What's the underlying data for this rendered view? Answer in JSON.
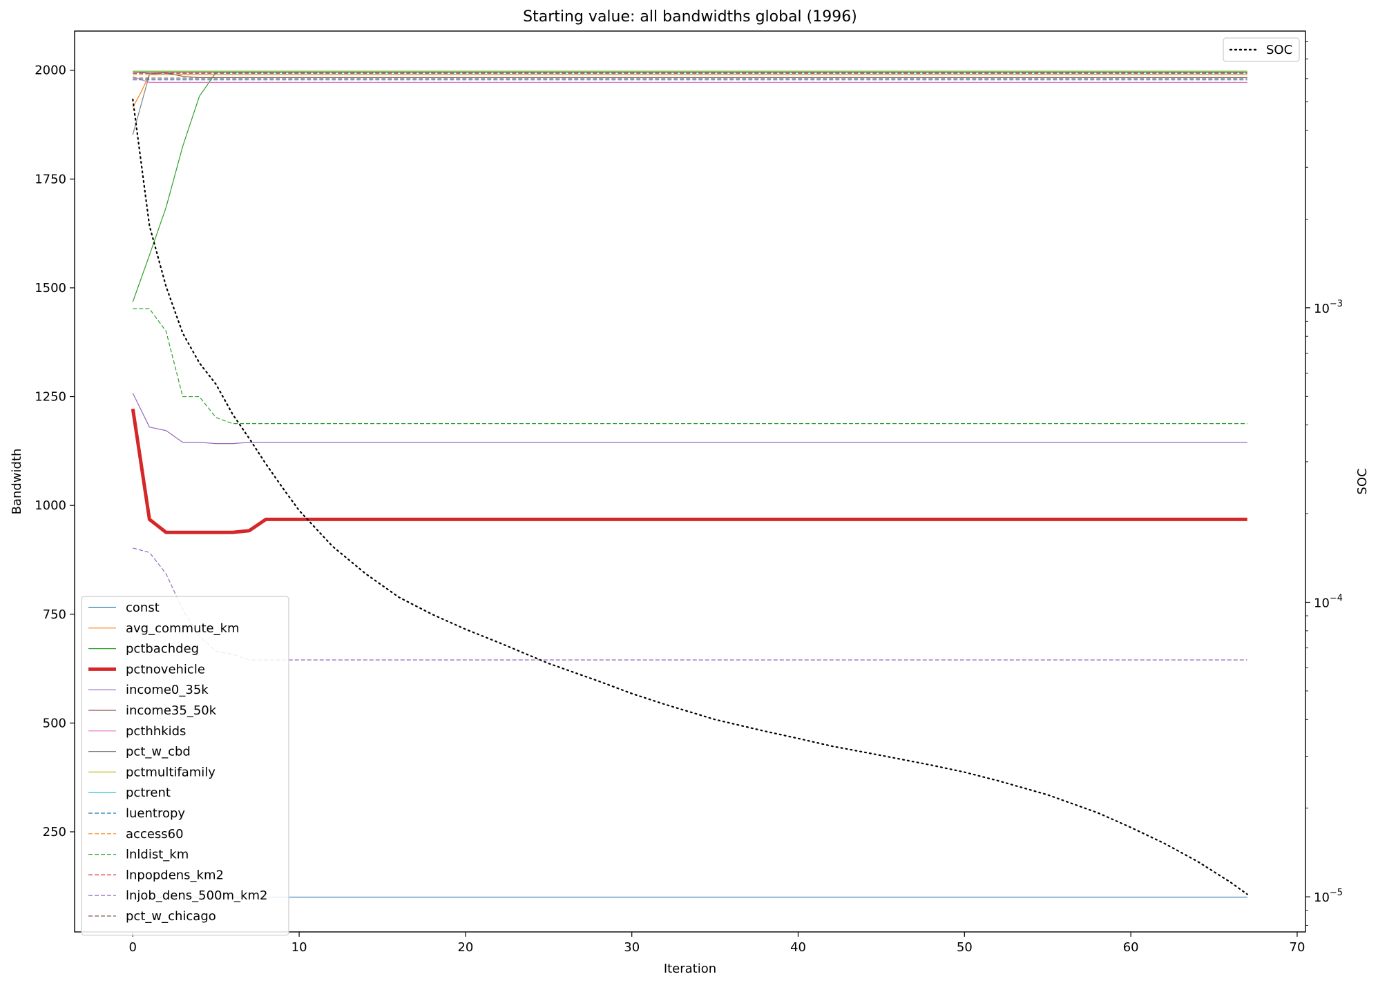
{
  "chart_data": {
    "type": "line",
    "title": "Starting value: all bandwidths global (1996)",
    "xlabel": "Iteration",
    "ylabel": "Bandwidth",
    "y2label": "SOC",
    "xlim": [
      -3.5,
      70.5
    ],
    "ylim": [
      20,
      2090
    ],
    "y2lim": [
      7.6e-06,
      0.0087
    ],
    "y2scale": "log",
    "x_ticks": [
      0,
      10,
      20,
      30,
      40,
      50,
      60,
      70
    ],
    "y_ticks": [
      250,
      500,
      750,
      1000,
      1250,
      1500,
      1750,
      2000
    ],
    "y2_ticks": [
      {
        "value": 1e-05,
        "label": "10",
        "exp": "−5"
      },
      {
        "value": 0.0001,
        "label": "10",
        "exp": "−4"
      },
      {
        "value": 0.001,
        "label": "10",
        "exp": "−3"
      }
    ],
    "legend_left_position": "lower-left",
    "legend_right_position": "upper-right",
    "grid": false,
    "series": [
      {
        "name": "const",
        "color": "#1f77b4",
        "dash": "solid",
        "width": 1.2,
        "points": [
          [
            0,
            100
          ],
          [
            67,
            100
          ]
        ]
      },
      {
        "name": "avg_commute_km",
        "color": "#ff7f0e",
        "dash": "solid",
        "width": 1.2,
        "points": [
          [
            0,
            1915
          ],
          [
            0.5,
            1950
          ],
          [
            1,
            1990
          ],
          [
            2,
            1995
          ],
          [
            67,
            1995
          ]
        ]
      },
      {
        "name": "pctbachdeg",
        "color": "#2ca02c",
        "dash": "solid",
        "width": 1.2,
        "points": [
          [
            0,
            1468
          ],
          [
            1,
            1575
          ],
          [
            2,
            1685
          ],
          [
            3,
            1825
          ],
          [
            4,
            1940
          ],
          [
            5,
            1995
          ],
          [
            67,
            1995
          ]
        ]
      },
      {
        "name": "pctnovehicle",
        "color": "#d62728",
        "dash": "solid",
        "width": 5,
        "points": [
          [
            0,
            1222
          ],
          [
            1,
            968
          ],
          [
            2,
            938
          ],
          [
            3,
            938
          ],
          [
            4,
            938
          ],
          [
            5,
            938
          ],
          [
            6,
            938
          ],
          [
            7,
            942
          ],
          [
            8,
            968
          ],
          [
            67,
            968
          ]
        ]
      },
      {
        "name": "income0_35k",
        "color": "#9467bd",
        "dash": "solid",
        "width": 1.2,
        "points": [
          [
            0,
            1258
          ],
          [
            1,
            1180
          ],
          [
            2,
            1172
          ],
          [
            3,
            1145
          ],
          [
            4,
            1145
          ],
          [
            5,
            1142
          ],
          [
            6,
            1142
          ],
          [
            7,
            1145
          ],
          [
            67,
            1145
          ]
        ]
      },
      {
        "name": "income35_50k",
        "color": "#8c564b",
        "dash": "solid",
        "width": 1.2,
        "points": [
          [
            0,
            1996
          ],
          [
            1,
            1993
          ],
          [
            2,
            1994
          ],
          [
            3,
            1986
          ],
          [
            4,
            1983
          ],
          [
            67,
            1983
          ]
        ]
      },
      {
        "name": "pcthhkids",
        "color": "#e377c2",
        "dash": "solid",
        "width": 1.2,
        "points": [
          [
            0,
            1985
          ],
          [
            1,
            1972
          ],
          [
            67,
            1972
          ]
        ]
      },
      {
        "name": "pct_w_cbd",
        "color": "#7f7f7f",
        "dash": "solid",
        "width": 1.2,
        "points": [
          [
            0,
            1852
          ],
          [
            1,
            1990
          ],
          [
            67,
            1990
          ]
        ]
      },
      {
        "name": "pctmultifamily",
        "color": "#bcbd22",
        "dash": "solid",
        "width": 1.2,
        "points": [
          [
            0,
            1998
          ],
          [
            67,
            1998
          ]
        ]
      },
      {
        "name": "pctrent",
        "color": "#17becf",
        "dash": "solid",
        "width": 1.2,
        "points": [
          [
            0,
            1996
          ],
          [
            67,
            1996
          ]
        ]
      },
      {
        "name": "luentropy",
        "color": "#1f77b4",
        "dash": "dashed",
        "width": 1.2,
        "points": [
          [
            0,
            1978
          ],
          [
            67,
            1978
          ]
        ]
      },
      {
        "name": "access60",
        "color": "#ff7f0e",
        "dash": "dashed",
        "width": 1.2,
        "points": [
          [
            0,
            1990
          ],
          [
            67,
            1990
          ]
        ]
      },
      {
        "name": "lnldist_km",
        "color": "#2ca02c",
        "dash": "dashed",
        "width": 1.2,
        "points": [
          [
            0,
            1452
          ],
          [
            1,
            1452
          ],
          [
            2,
            1400
          ],
          [
            3,
            1250
          ],
          [
            4,
            1250
          ],
          [
            5,
            1202
          ],
          [
            6,
            1188
          ],
          [
            67,
            1188
          ]
        ]
      },
      {
        "name": "lnpopdens_km2",
        "color": "#d62728",
        "dash": "dashed",
        "width": 1.2,
        "points": [
          [
            0,
            1993
          ],
          [
            67,
            1993
          ]
        ]
      },
      {
        "name": "lnjob_dens_500m_km2",
        "color": "#9467bd",
        "dash": "dashed",
        "width": 1.2,
        "points": [
          [
            0,
            902
          ],
          [
            1,
            892
          ],
          [
            2,
            843
          ],
          [
            3,
            760
          ],
          [
            4,
            700
          ],
          [
            5,
            665
          ],
          [
            6,
            658
          ],
          [
            7,
            645
          ],
          [
            67,
            645
          ]
        ]
      },
      {
        "name": "pct_w_chicago",
        "color": "#8c564b",
        "dash": "dashed",
        "width": 1.2,
        "points": [
          [
            0,
            1982
          ],
          [
            67,
            1982
          ]
        ]
      }
    ],
    "soc_series": {
      "name": "SOC",
      "color": "#000000",
      "dash": "dotted",
      "width": 2.2,
      "points": [
        [
          0,
          0.0051
        ],
        [
          1,
          0.0019
        ],
        [
          2,
          0.00118
        ],
        [
          3,
          0.00082
        ],
        [
          4,
          0.00065
        ],
        [
          5,
          0.00055
        ],
        [
          6,
          0.000435
        ],
        [
          7,
          0.00036
        ],
        [
          8,
          0.000295
        ],
        [
          9,
          0.000245
        ],
        [
          10,
          0.000205
        ],
        [
          12,
          0.000155
        ],
        [
          14,
          0.000125
        ],
        [
          16,
          0.000104
        ],
        [
          18,
          9.1e-05
        ],
        [
          20,
          8.1e-05
        ],
        [
          22,
          7.3e-05
        ],
        [
          25,
          6.2e-05
        ],
        [
          28,
          5.4e-05
        ],
        [
          30,
          4.9e-05
        ],
        [
          32,
          4.5e-05
        ],
        [
          35,
          4e-05
        ],
        [
          38,
          3.65e-05
        ],
        [
          40,
          3.45e-05
        ],
        [
          42,
          3.25e-05
        ],
        [
          45,
          3.02e-05
        ],
        [
          48,
          2.8e-05
        ],
        [
          50,
          2.65e-05
        ],
        [
          52,
          2.48e-05
        ],
        [
          55,
          2.22e-05
        ],
        [
          58,
          1.93e-05
        ],
        [
          60,
          1.72e-05
        ],
        [
          62,
          1.52e-05
        ],
        [
          64,
          1.32e-05
        ],
        [
          66,
          1.12e-05
        ],
        [
          67,
          1.02e-05
        ]
      ]
    }
  }
}
